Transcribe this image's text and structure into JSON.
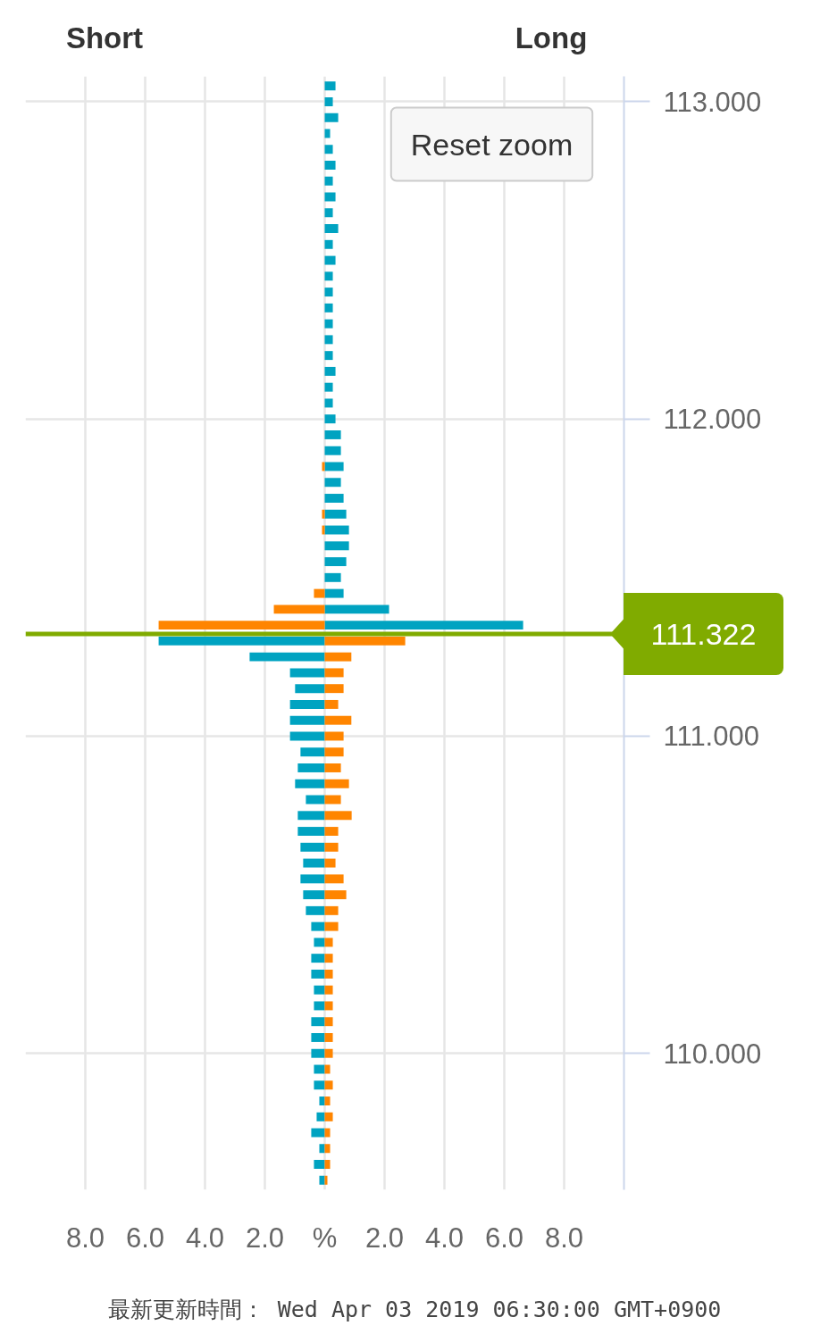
{
  "chart_data": {
    "type": "bar",
    "orientation": "horizontal",
    "stacked": true,
    "x": [
      113.05,
      113.0,
      112.95,
      112.9,
      112.85,
      112.8,
      112.75,
      112.7,
      112.65,
      112.6,
      112.55,
      112.5,
      112.45,
      112.4,
      112.35,
      112.3,
      112.25,
      112.2,
      112.15,
      112.1,
      112.05,
      112.0,
      111.95,
      111.9,
      111.85,
      111.8,
      111.75,
      111.7,
      111.65,
      111.6,
      111.55,
      111.5,
      111.45,
      111.4,
      111.35,
      111.3,
      111.25,
      111.2,
      111.15,
      111.1,
      111.05,
      111.0,
      110.95,
      110.9,
      110.85,
      110.8,
      110.75,
      110.7,
      110.65,
      110.6,
      110.55,
      110.5,
      110.45,
      110.4,
      110.35,
      110.3,
      110.25,
      110.2,
      110.15,
      110.1,
      110.05,
      110.0,
      109.95,
      109.9,
      109.85,
      109.8,
      109.75,
      109.7,
      109.65,
      109.6
    ],
    "series": [
      {
        "color": "#00a3c1",
        "values": [
          0.36,
          0.27,
          0.45,
          0.18,
          0.27,
          0.36,
          0.27,
          0.36,
          0.27,
          0.45,
          0.27,
          0.36,
          0.27,
          0.27,
          0.27,
          0.27,
          0.27,
          0.27,
          0.36,
          0.27,
          0.27,
          0.36,
          0.54,
          0.54,
          0.63,
          0.54,
          0.63,
          0.72,
          0.81,
          0.81,
          0.72,
          0.54,
          0.63,
          2.15,
          6.63,
          -5.55,
          -2.51,
          -1.16,
          -0.99,
          -1.16,
          -1.16,
          -1.16,
          -0.81,
          -0.9,
          -0.99,
          -0.63,
          -0.9,
          -0.9,
          -0.81,
          -0.72,
          -0.81,
          -0.72,
          -0.63,
          -0.45,
          -0.36,
          -0.45,
          -0.45,
          -0.36,
          -0.36,
          -0.45,
          -0.45,
          -0.45,
          -0.36,
          -0.36,
          -0.18,
          -0.27,
          -0.45,
          -0.18,
          -0.36,
          -0.18
        ]
      },
      {
        "color": "#ff8500",
        "values": [
          null,
          null,
          null,
          null,
          null,
          null,
          null,
          null,
          null,
          null,
          null,
          null,
          null,
          null,
          null,
          null,
          null,
          null,
          null,
          null,
          null,
          null,
          null,
          null,
          -0.09,
          null,
          null,
          -0.09,
          -0.09,
          null,
          null,
          null,
          -0.36,
          -1.7,
          -5.55,
          2.69,
          0.89,
          0.63,
          0.63,
          0.45,
          0.89,
          0.63,
          0.63,
          0.54,
          0.81,
          0.54,
          0.9,
          0.45,
          0.45,
          0.36,
          0.63,
          0.72,
          0.45,
          0.45,
          0.27,
          0.27,
          0.27,
          0.27,
          0.27,
          0.27,
          0.27,
          0.27,
          0.18,
          0.27,
          0.18,
          0.27,
          0.18,
          0.18,
          0.18,
          0.09
        ]
      }
    ],
    "xlim": [
      -10,
      10
    ],
    "xticks": [
      {
        "value": -8,
        "label": "8.0"
      },
      {
        "value": -6,
        "label": "6.0"
      },
      {
        "value": -4,
        "label": "4.0"
      },
      {
        "value": -2,
        "label": "2.0"
      },
      {
        "value": 0,
        "label": "%"
      },
      {
        "value": 2,
        "label": "2.0"
      },
      {
        "value": 4,
        "label": "4.0"
      },
      {
        "value": 6,
        "label": "6.0"
      },
      {
        "value": 8,
        "label": "8.0"
      }
    ],
    "ylim": [
      109.57,
      113.08
    ],
    "yticks": [
      {
        "value": 110,
        "label": "110.000"
      },
      {
        "value": 111,
        "label": "111.000"
      },
      {
        "value": 112,
        "label": "112.000"
      },
      {
        "value": 113,
        "label": "113.000"
      }
    ],
    "grid": true,
    "ref_lines": [
      {
        "axis": "y",
        "value": 111.322,
        "label": "111.322",
        "color": "#80ab00"
      }
    ],
    "annotations": [
      "Short",
      "Long",
      "Reset zoom",
      "最新更新時間： Wed Apr 03 2019 06:30:00 GMT+0900"
    ]
  }
}
